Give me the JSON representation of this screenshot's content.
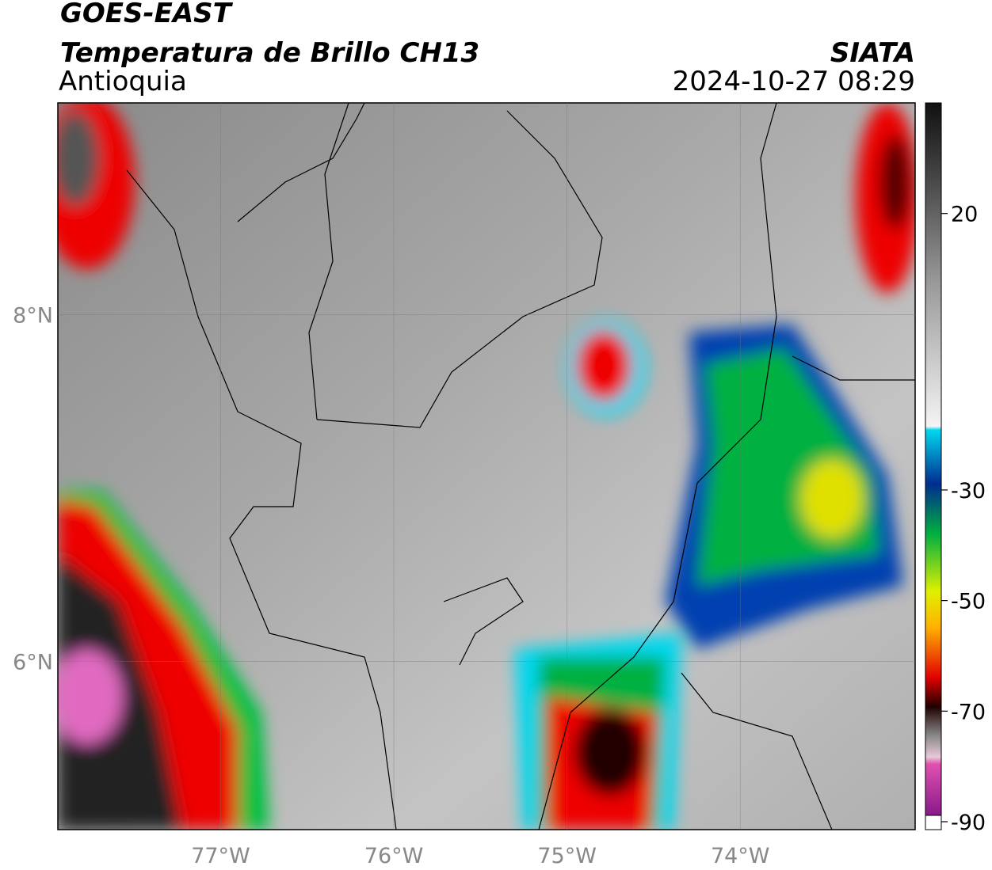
{
  "header": {
    "title": "GOES-EAST",
    "subtitle": "Temperatura de Brillo CH13",
    "region": "Antioquia",
    "source": "SIATA",
    "timestamp": "2024-10-27 08:29"
  },
  "map": {
    "xlim": [
      -77.94,
      -72.99
    ],
    "ylim": [
      5.03,
      9.22
    ],
    "xticks": [
      {
        "value": -77,
        "label": "77°W"
      },
      {
        "value": -76,
        "label": "76°W"
      },
      {
        "value": -75,
        "label": "75°W"
      },
      {
        "value": -74,
        "label": "74°W"
      }
    ],
    "yticks": [
      {
        "value": 6,
        "label": "6°N"
      },
      {
        "value": 8,
        "label": "8°N"
      }
    ]
  },
  "colorbar": {
    "lim": [
      -90,
      40
    ],
    "ticks": [
      20,
      -30,
      -50,
      -70,
      -90
    ]
  }
}
